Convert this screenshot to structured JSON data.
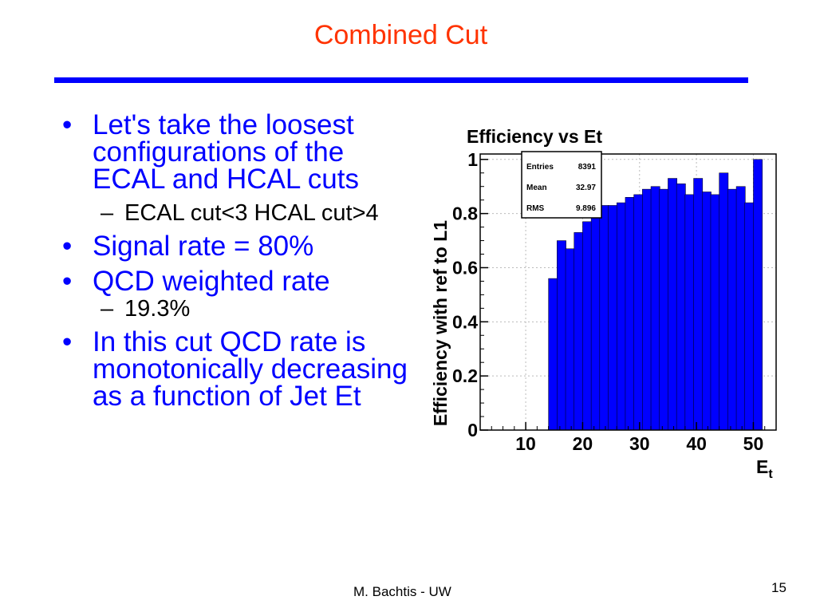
{
  "slide": {
    "title": "Combined Cut",
    "footer": "M. Bachtis - UW",
    "page_number": "15",
    "title_rule_color": "#0000ff"
  },
  "bullets": [
    {
      "text": "Let's take the loosest configurations of the ECAL and HCAL cuts",
      "sub": [
        "ECAL cut<3 HCAL cut>4"
      ]
    },
    {
      "text": "Signal rate = 80%",
      "sub": []
    },
    {
      "text": "QCD weighted rate",
      "sub": [
        "19.3%"
      ]
    },
    {
      "text": "In this cut QCD rate is monotonically decreasing as a function of Jet Et",
      "sub": []
    }
  ],
  "chart_data": {
    "type": "bar",
    "title": "Efficiency vs Et",
    "ylabel": "Efficiency with ref to L1",
    "xlabel": "E",
    "xlabel_subscript": "t",
    "xlim": [
      2,
      54
    ],
    "ylim": [
      0,
      1.02
    ],
    "xticks": [
      10,
      20,
      30,
      40,
      50
    ],
    "yticks": [
      0,
      0.2,
      0.4,
      0.6,
      0.8,
      1
    ],
    "ytick_labels": [
      "0",
      "0.2",
      "0.4",
      "0.6",
      "0.8",
      "1"
    ],
    "grid": true,
    "fill_color": "#0000ff",
    "bin_width": 1.5,
    "bins": [
      {
        "x": 14.75,
        "y": 0.56
      },
      {
        "x": 16.25,
        "y": 0.7
      },
      {
        "x": 17.75,
        "y": 0.67
      },
      {
        "x": 19.25,
        "y": 0.73
      },
      {
        "x": 20.75,
        "y": 0.77
      },
      {
        "x": 22.25,
        "y": 0.79
      },
      {
        "x": 23.75,
        "y": 0.83
      },
      {
        "x": 25.25,
        "y": 0.83
      },
      {
        "x": 26.75,
        "y": 0.84
      },
      {
        "x": 28.25,
        "y": 0.86
      },
      {
        "x": 29.75,
        "y": 0.87
      },
      {
        "x": 31.25,
        "y": 0.89
      },
      {
        "x": 32.75,
        "y": 0.9
      },
      {
        "x": 34.25,
        "y": 0.89
      },
      {
        "x": 35.75,
        "y": 0.93
      },
      {
        "x": 37.25,
        "y": 0.91
      },
      {
        "x": 38.75,
        "y": 0.87
      },
      {
        "x": 40.25,
        "y": 0.93
      },
      {
        "x": 41.75,
        "y": 0.88
      },
      {
        "x": 43.25,
        "y": 0.87
      },
      {
        "x": 44.75,
        "y": 0.95
      },
      {
        "x": 46.25,
        "y": 0.89
      },
      {
        "x": 47.75,
        "y": 0.9
      },
      {
        "x": 49.25,
        "y": 0.84
      },
      {
        "x": 50.75,
        "y": 1.0
      }
    ],
    "stats": [
      {
        "label": "Entries",
        "value": "8391"
      },
      {
        "label": "Mean",
        "value": "32.97"
      },
      {
        "label": "RMS",
        "value": "9.896"
      }
    ]
  }
}
